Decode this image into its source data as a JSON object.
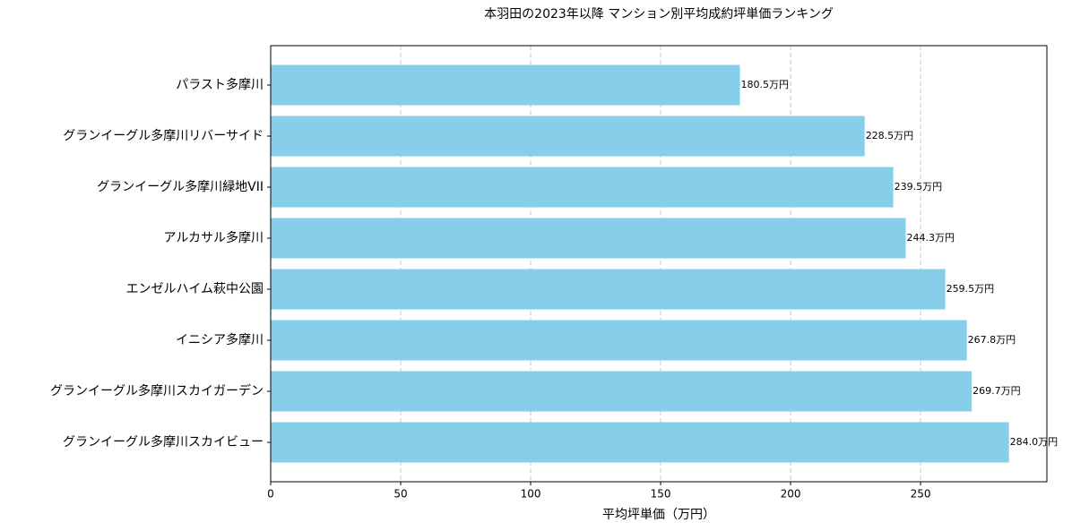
{
  "chart_data": {
    "type": "barh",
    "title": "本羽田の2023年以降 マンション別平均成約坪単価ランキング",
    "x_label": "平均坪単価（万円）",
    "categories": [
      "パラスト多摩川",
      "グランイーグル多摩川リバーサイド",
      "グランイーグル多摩川緑地VII",
      "アルカサル多摩川",
      "エンゼルハイム萩中公園",
      "イニシア多摩川",
      "グランイーグル多摩川スカイガーデン",
      "グランイーグル多摩川スカイビュー"
    ],
    "values": [
      180.5,
      228.5,
      239.5,
      244.3,
      259.5,
      267.8,
      269.7,
      284.0
    ],
    "value_labels": [
      "180.5万円",
      "228.5万円",
      "239.5万円",
      "244.3万円",
      "259.5万円",
      "267.8万円",
      "269.7万円",
      "284.0万円"
    ],
    "color": "#87ceeb",
    "xlim": [
      0,
      298.6
    ],
    "xticks": [
      0,
      50,
      100,
      150,
      200,
      250
    ],
    "grid": true
  }
}
